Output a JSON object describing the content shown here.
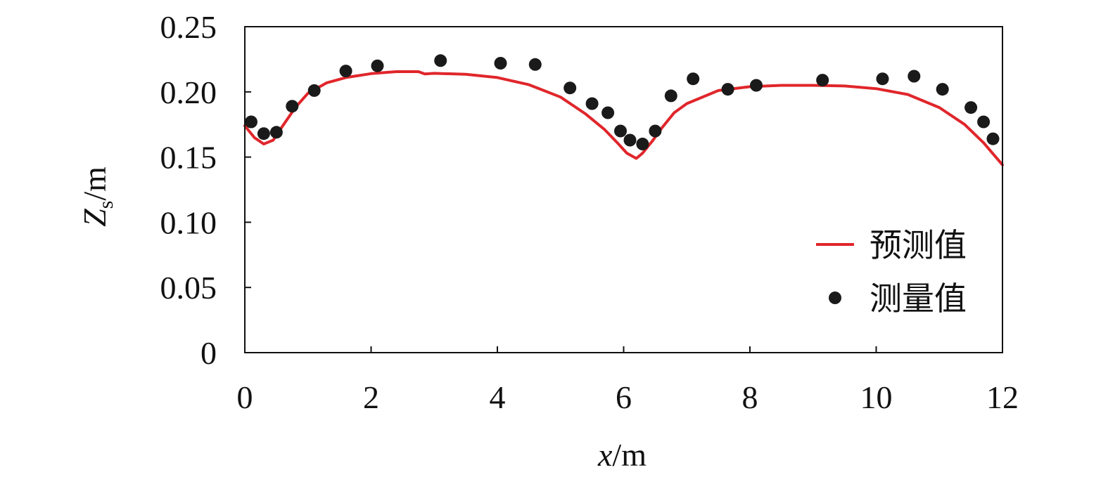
{
  "chart_data": {
    "type": "line",
    "title": "",
    "xlabel": {
      "var": "x",
      "unit": "/m"
    },
    "ylabel": {
      "var": "Z",
      "sub": "s",
      "unit": "/m"
    },
    "xlim": [
      0,
      12
    ],
    "ylim": [
      0,
      0.25
    ],
    "xticks": [
      "0",
      "2",
      "4",
      "6",
      "8",
      "10",
      "12"
    ],
    "yticks": [
      "0",
      "0.05",
      "0.10",
      "0.15",
      "0.20",
      "0.25"
    ],
    "grid": false,
    "legend_position": "right",
    "series": [
      {
        "name": "预测值",
        "kind": "line",
        "color": "#e0262b",
        "x": [
          0,
          0.15,
          0.3,
          0.45,
          0.6,
          0.8,
          1.0,
          1.3,
          1.6,
          2.0,
          2.4,
          2.75,
          2.85,
          3.0,
          3.5,
          4.0,
          4.5,
          5.0,
          5.4,
          5.7,
          5.9,
          6.05,
          6.2,
          6.3,
          6.45,
          6.6,
          6.8,
          7.0,
          7.5,
          8.0,
          8.5,
          9.0,
          9.5,
          10.0,
          10.5,
          11.0,
          11.4,
          11.7,
          12.0
        ],
        "y": [
          0.174,
          0.165,
          0.16,
          0.163,
          0.174,
          0.188,
          0.199,
          0.207,
          0.211,
          0.214,
          0.2155,
          0.2155,
          0.2138,
          0.2142,
          0.2135,
          0.211,
          0.2055,
          0.196,
          0.183,
          0.171,
          0.161,
          0.153,
          0.149,
          0.153,
          0.162,
          0.172,
          0.184,
          0.191,
          0.201,
          0.204,
          0.205,
          0.205,
          0.2045,
          0.2025,
          0.198,
          0.188,
          0.175,
          0.161,
          0.144
        ]
      },
      {
        "name": "测量值",
        "kind": "scatter",
        "color": "#1a1a1a",
        "x": [
          0.1,
          0.3,
          0.5,
          0.75,
          1.1,
          1.6,
          2.1,
          3.1,
          4.05,
          4.6,
          5.15,
          5.5,
          5.75,
          5.95,
          6.1,
          6.3,
          6.5,
          6.75,
          7.1,
          7.65,
          8.1,
          9.15,
          10.1,
          10.6,
          11.05,
          11.5,
          11.7,
          11.85
        ],
        "y": [
          0.177,
          0.168,
          0.169,
          0.189,
          0.201,
          0.216,
          0.22,
          0.224,
          0.222,
          0.221,
          0.203,
          0.191,
          0.184,
          0.17,
          0.163,
          0.16,
          0.17,
          0.197,
          0.21,
          0.202,
          0.205,
          0.209,
          0.21,
          0.212,
          0.202,
          0.188,
          0.177,
          0.164
        ]
      }
    ]
  }
}
